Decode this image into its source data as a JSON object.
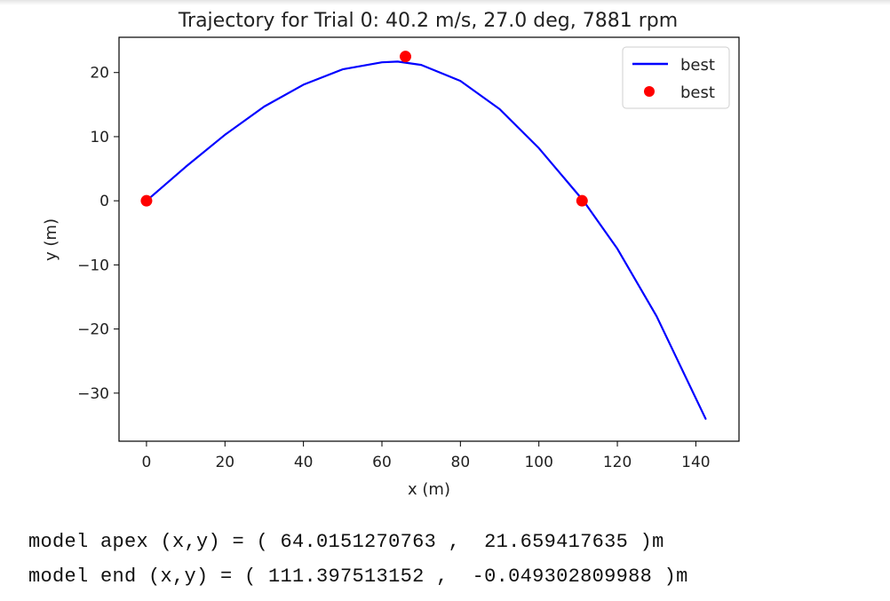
{
  "chart_data": {
    "type": "line",
    "title": "Trajectory for Trial 0: 40.2 m/s, 27.0 deg, 7881 rpm",
    "xlabel": "x (m)",
    "ylabel": "y (m)",
    "xlim": [
      -7,
      151
    ],
    "ylim": [
      -37.5,
      25.5
    ],
    "xticks": [
      0,
      20,
      40,
      60,
      80,
      100,
      120,
      140
    ],
    "yticks": [
      20,
      10,
      0,
      -10,
      -20,
      -30
    ],
    "ytick_labels": [
      "20",
      "10",
      "0",
      "−10",
      "−20",
      "−30"
    ],
    "grid": false,
    "legend_position": "top-right",
    "series": [
      {
        "name": "best",
        "kind": "line",
        "color": "#0000ff",
        "x": [
          0,
          10,
          20,
          30,
          40,
          50,
          60,
          64,
          70,
          80,
          90,
          100,
          111.4,
          120,
          130,
          142.5
        ],
        "y": [
          0,
          5.3,
          10.3,
          14.7,
          18.1,
          20.5,
          21.6,
          21.7,
          21.2,
          18.7,
          14.3,
          8.2,
          -0.05,
          -7.5,
          -18.0,
          -34.0
        ]
      },
      {
        "name": "best",
        "kind": "scatter",
        "color": "#ff0000",
        "x": [
          0,
          66,
          111
        ],
        "y": [
          0,
          22.5,
          0
        ]
      }
    ]
  },
  "output_lines": [
    "model apex (x,y) = ( 64.0151270763 ,  21.659417635 )m",
    "model end (x,y) = ( 111.397513152 ,  -0.049302809988 )m"
  ]
}
